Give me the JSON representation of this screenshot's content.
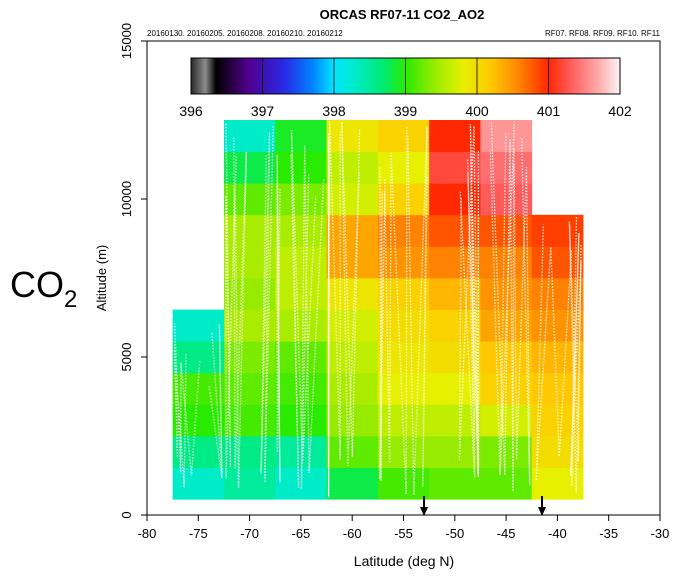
{
  "side_label": {
    "main": "CO",
    "sub": "2"
  },
  "chart_data": {
    "type": "heatmap",
    "title": "ORCAS RF07-11 CO2_AO2",
    "subtitle_left": "20160130. 20160205. 20160208. 20160210. 20160212",
    "subtitle_right": "RF07. RF08. RF09. RF10. RF11",
    "xlabel": "Latitude (deg N)",
    "ylabel": "Altitude (m)",
    "xlim": [
      -80,
      -30
    ],
    "ylim": [
      0,
      15000
    ],
    "xticks": [
      -80,
      -75,
      -70,
      -65,
      -60,
      -55,
      -50,
      -45,
      -40,
      -35,
      -30
    ],
    "yticks": [
      0,
      5000,
      10000,
      15000
    ],
    "colorbar": {
      "min": 396,
      "max": 402,
      "ticks": [
        396,
        397,
        398,
        399,
        400,
        401,
        402
      ]
    },
    "cell_width_deg": 5,
    "cell_height_m": 1000,
    "columns": [
      {
        "lat_center": -75,
        "alt_bottom": 500,
        "values": [
          398.3,
          398.6,
          399.0,
          399.1,
          398.6,
          398.3
        ]
      },
      {
        "lat_center": -70,
        "alt_bottom": 500,
        "values": [
          398.5,
          398.6,
          399.1,
          399.2,
          399.3,
          399.5,
          399.4,
          399.5,
          399.5,
          399.2,
          398.8,
          398.3
        ]
      },
      {
        "lat_center": -65,
        "alt_bottom": 500,
        "values": [
          398.3,
          398.5,
          399.0,
          399.1,
          399.2,
          399.5,
          399.6,
          399.6,
          399.5,
          399.3,
          399.0,
          398.9
        ]
      },
      {
        "lat_center": -60,
        "alt_bottom": 500,
        "values": [
          398.8,
          399.2,
          399.4,
          399.5,
          399.6,
          399.7,
          399.9,
          400.4,
          400.4,
          399.7,
          399.6,
          399.9
        ]
      },
      {
        "lat_center": -55,
        "alt_bottom": 500,
        "values": [
          399.1,
          399.4,
          399.6,
          399.8,
          399.9,
          400.0,
          400.1,
          400.5,
          400.6,
          400.1,
          399.8,
          400.1
        ]
      },
      {
        "lat_center": -50,
        "alt_bottom": 500,
        "values": [
          399.2,
          399.4,
          399.6,
          399.8,
          400.0,
          400.1,
          400.3,
          400.6,
          400.8,
          401.0,
          401.2,
          401.0
        ]
      },
      {
        "lat_center": -45,
        "alt_bottom": 500,
        "values": [
          399.2,
          399.3,
          399.7,
          400.1,
          400.2,
          400.4,
          400.5,
          400.6,
          400.8,
          401.3,
          401.4,
          401.6
        ]
      },
      {
        "lat_center": -40,
        "alt_bottom": 500,
        "values": [
          399.8,
          400.0,
          400.1,
          400.2,
          400.3,
          400.5,
          400.6,
          400.8,
          400.9
        ]
      }
    ],
    "markers_lat": [
      -53,
      -41.5
    ],
    "grid": false,
    "legend": "none"
  }
}
